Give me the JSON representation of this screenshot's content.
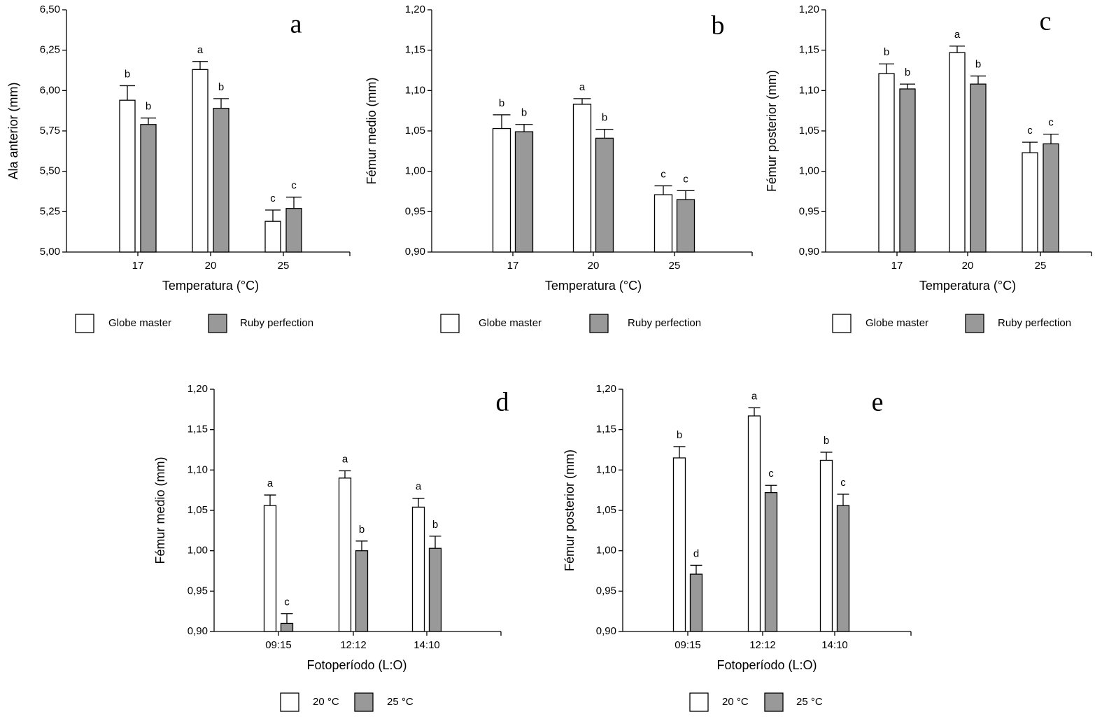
{
  "chart_data": [
    {
      "type": "bar",
      "panel_label": "a",
      "xlabel": "Temperatura (°C)",
      "ylabel": "Ala anterior (mm)",
      "categories": [
        "17",
        "20",
        "25"
      ],
      "ylim": [
        5.0,
        6.5
      ],
      "yticks": [
        {
          "value": 5.0,
          "label": "5,00"
        },
        {
          "value": 5.25,
          "label": "5,25"
        },
        {
          "value": 5.5,
          "label": "5,50"
        },
        {
          "value": 5.75,
          "label": "5,75"
        },
        {
          "value": 6.0,
          "label": "6,00"
        },
        {
          "value": 6.25,
          "label": "6,25"
        },
        {
          "value": 6.5,
          "label": "6,50"
        }
      ],
      "series": [
        {
          "name": "Globe master",
          "color": "#ffffff",
          "values": [
            5.94,
            6.13,
            5.19
          ],
          "errors": [
            0.09,
            0.05,
            0.07
          ],
          "letters": [
            "b",
            "a",
            "c"
          ]
        },
        {
          "name": "Ruby perfection",
          "color": "#999999",
          "values": [
            5.79,
            5.89,
            5.27
          ],
          "errors": [
            0.04,
            0.06,
            0.07
          ],
          "letters": [
            "b",
            "b",
            "c"
          ]
        }
      ]
    },
    {
      "type": "bar",
      "panel_label": "b",
      "xlabel": "Temperatura (°C)",
      "ylabel": "Fémur medio (mm)",
      "categories": [
        "17",
        "20",
        "25"
      ],
      "ylim": [
        0.9,
        1.2
      ],
      "yticks": [
        {
          "value": 0.9,
          "label": "0,90"
        },
        {
          "value": 0.95,
          "label": "0,95"
        },
        {
          "value": 1.0,
          "label": "1,00"
        },
        {
          "value": 1.05,
          "label": "1,05"
        },
        {
          "value": 1.1,
          "label": "1,10"
        },
        {
          "value": 1.15,
          "label": "1,15"
        },
        {
          "value": 1.2,
          "label": "1,20"
        }
      ],
      "series": [
        {
          "name": "Globe master",
          "color": "#ffffff",
          "values": [
            1.053,
            1.083,
            0.971
          ],
          "errors": [
            0.017,
            0.007,
            0.011
          ],
          "letters": [
            "b",
            "a",
            "c"
          ]
        },
        {
          "name": "Ruby perfection",
          "color": "#999999",
          "values": [
            1.049,
            1.041,
            0.965
          ],
          "errors": [
            0.009,
            0.011,
            0.011
          ],
          "letters": [
            "b",
            "b",
            "c"
          ]
        }
      ]
    },
    {
      "type": "bar",
      "panel_label": "c",
      "xlabel": "Temperatura (°C)",
      "ylabel": "Fémur posterior (mm)",
      "categories": [
        "17",
        "20",
        "25"
      ],
      "ylim": [
        0.9,
        1.2
      ],
      "yticks": [
        {
          "value": 0.9,
          "label": "0,90"
        },
        {
          "value": 0.95,
          "label": "0,95"
        },
        {
          "value": 1.0,
          "label": "1,00"
        },
        {
          "value": 1.05,
          "label": "1,05"
        },
        {
          "value": 1.1,
          "label": "1,10"
        },
        {
          "value": 1.15,
          "label": "1,15"
        },
        {
          "value": 1.2,
          "label": "1,20"
        }
      ],
      "series": [
        {
          "name": "Globe master",
          "color": "#ffffff",
          "values": [
            1.121,
            1.147,
            1.023
          ],
          "errors": [
            0.012,
            0.008,
            0.013
          ],
          "letters": [
            "b",
            "a",
            "c"
          ]
        },
        {
          "name": "Ruby perfection",
          "color": "#999999",
          "values": [
            1.102,
            1.108,
            1.034
          ],
          "errors": [
            0.006,
            0.01,
            0.012
          ],
          "letters": [
            "b",
            "b",
            "c"
          ]
        }
      ]
    },
    {
      "type": "bar",
      "panel_label": "d",
      "xlabel": "Fotoperíodo (L:O)",
      "ylabel": "Fémur medio (mm)",
      "categories": [
        "09:15",
        "12:12",
        "14:10"
      ],
      "ylim": [
        0.9,
        1.2
      ],
      "yticks": [
        {
          "value": 0.9,
          "label": "0,90"
        },
        {
          "value": 0.95,
          "label": "0,95"
        },
        {
          "value": 1.0,
          "label": "1,00"
        },
        {
          "value": 1.05,
          "label": "1,05"
        },
        {
          "value": 1.1,
          "label": "1,10"
        },
        {
          "value": 1.15,
          "label": "1,15"
        },
        {
          "value": 1.2,
          "label": "1,20"
        }
      ],
      "series": [
        {
          "name": "20 °C",
          "color": "#ffffff",
          "values": [
            1.056,
            1.09,
            1.054
          ],
          "errors": [
            0.013,
            0.009,
            0.011
          ],
          "letters": [
            "a",
            "a",
            "a"
          ]
        },
        {
          "name": "25 °C",
          "color": "#999999",
          "values": [
            0.91,
            1.0,
            1.003
          ],
          "errors": [
            0.012,
            0.012,
            0.015
          ],
          "letters": [
            "c",
            "b",
            "b"
          ]
        }
      ]
    },
    {
      "type": "bar",
      "panel_label": "e",
      "xlabel": "Fotoperíodo (L:O)",
      "ylabel": "Fémur posterior (mm)",
      "categories": [
        "09:15",
        "12:12",
        "14:10"
      ],
      "ylim": [
        0.9,
        1.2
      ],
      "yticks": [
        {
          "value": 0.9,
          "label": "0,90"
        },
        {
          "value": 0.95,
          "label": "0,95"
        },
        {
          "value": 1.0,
          "label": "1,00"
        },
        {
          "value": 1.05,
          "label": "1,05"
        },
        {
          "value": 1.1,
          "label": "1,10"
        },
        {
          "value": 1.15,
          "label": "1,15"
        },
        {
          "value": 1.2,
          "label": "1,20"
        }
      ],
      "series": [
        {
          "name": "20 °C",
          "color": "#ffffff",
          "values": [
            1.115,
            1.167,
            1.112
          ],
          "errors": [
            0.014,
            0.01,
            0.01
          ],
          "letters": [
            "b",
            "a",
            "b"
          ]
        },
        {
          "name": "25 °C",
          "color": "#999999",
          "values": [
            0.971,
            1.072,
            1.056
          ],
          "errors": [
            0.011,
            0.009,
            0.014
          ],
          "letters": [
            "d",
            "c",
            "c"
          ]
        }
      ]
    }
  ]
}
